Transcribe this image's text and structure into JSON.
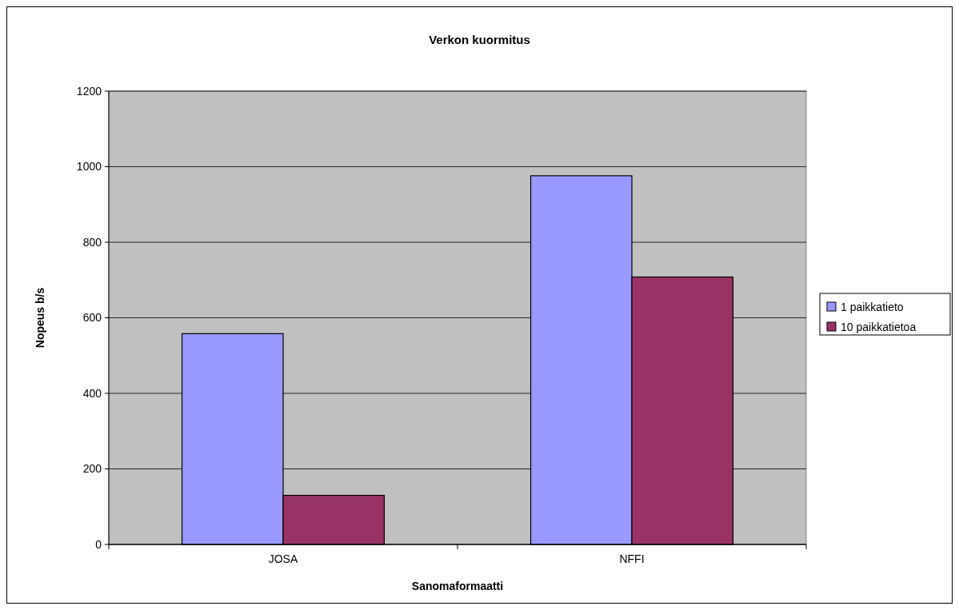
{
  "chart_data": {
    "type": "bar",
    "title": "Verkon kuormitus",
    "xlabel": "Sanomaformaatti",
    "ylabel": "Nopeus b/s",
    "categories": [
      "JOSA",
      "NFFI"
    ],
    "series": [
      {
        "name": "1 paikkatieto",
        "color": "#9999ff",
        "values": [
          558,
          976
        ]
      },
      {
        "name": "10 paikkatietoa",
        "color": "#993366",
        "values": [
          130,
          708
        ]
      }
    ],
    "ylim": [
      0,
      1200
    ],
    "yticks": [
      0,
      200,
      400,
      600,
      800,
      1000,
      1200
    ],
    "grid": "y",
    "legend": "right"
  }
}
